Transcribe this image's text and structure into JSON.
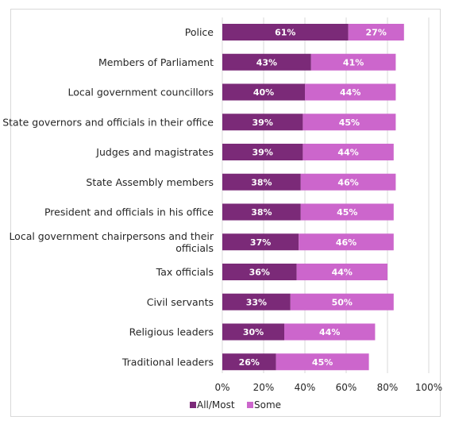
{
  "chart_data": {
    "type": "bar",
    "orientation": "horizontal",
    "stacked": true,
    "title": "",
    "xlabel": "",
    "ylabel": "",
    "xlim": [
      0,
      100
    ],
    "x_ticks": [
      "0%",
      "20%",
      "40%",
      "60%",
      "80%",
      "100%"
    ],
    "grid": true,
    "legend_position": "bottom-center",
    "categories": [
      "Police",
      "Members of Parliament",
      "Local government councillors",
      "State governors and officials in their office",
      "Judges and magistrates",
      "State Assembly members",
      "President and officials in his office",
      "Local government chairpersons and their officials",
      "Tax officials",
      "Civil servants",
      "Religious leaders",
      "Traditional leaders"
    ],
    "category_lines": [
      [
        "Police"
      ],
      [
        "Members of Parliament"
      ],
      [
        "Local government councillors"
      ],
      [
        "State governors and officials in their office"
      ],
      [
        "Judges and magistrates"
      ],
      [
        "State Assembly members"
      ],
      [
        "President and officials in his office"
      ],
      [
        "Local government chairpersons and their",
        "officials"
      ],
      [
        "Tax officials"
      ],
      [
        "Civil servants"
      ],
      [
        "Religious leaders"
      ],
      [
        "Traditional leaders"
      ]
    ],
    "series": [
      {
        "name": "All/Most",
        "color": "#7b2a78",
        "values": [
          61,
          43,
          40,
          39,
          39,
          38,
          38,
          37,
          36,
          33,
          30,
          26
        ],
        "labels": [
          "61%",
          "43%",
          "40%",
          "39%",
          "39%",
          "38%",
          "38%",
          "37%",
          "36%",
          "33%",
          "30%",
          "26%"
        ]
      },
      {
        "name": "Some",
        "color": "#cc66cc",
        "values": [
          27,
          41,
          44,
          45,
          44,
          46,
          45,
          46,
          44,
          50,
          44,
          45
        ],
        "labels": [
          "27%",
          "41%",
          "44%",
          "45%",
          "44%",
          "46%",
          "45%",
          "46%",
          "44%",
          "50%",
          "44%",
          "45%"
        ]
      }
    ]
  }
}
